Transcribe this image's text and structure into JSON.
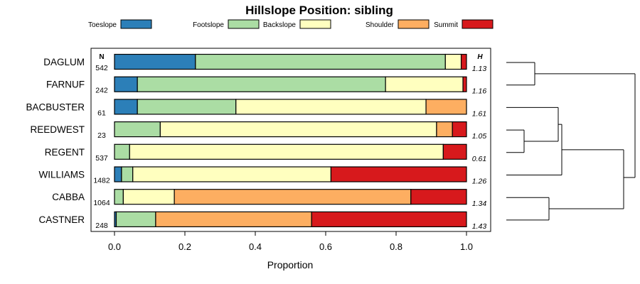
{
  "chart_data": {
    "type": "bar",
    "orientation": "horizontal",
    "stacked": true,
    "title": "Hillslope Position: sibling",
    "xlabel": "Proportion",
    "xlim": [
      0,
      1
    ],
    "xticks": [
      "0.0",
      "0.2",
      "0.4",
      "0.6",
      "0.8",
      "1.0"
    ],
    "legend_placement": "top",
    "n_header": "N",
    "h_header": "H",
    "series": [
      {
        "name": "Toeslope",
        "color": "#2c7fb8"
      },
      {
        "name": "Footslope",
        "color": "#abdda4"
      },
      {
        "name": "Backslope",
        "color": "#ffffbf"
      },
      {
        "name": "Shoulder",
        "color": "#fdae61"
      },
      {
        "name": "Summit",
        "color": "#d7191c"
      }
    ],
    "rows": [
      {
        "label": "DAGLUM",
        "n": "542",
        "h": "1.13",
        "values": [
          0.23,
          0.71,
          0.045,
          0.0,
          0.015
        ]
      },
      {
        "label": "FARNUF",
        "n": "242",
        "h": "1.16",
        "values": [
          0.065,
          0.705,
          0.22,
          0.0,
          0.01
        ]
      },
      {
        "label": "BACBUSTER",
        "n": "61",
        "h": "1.61",
        "values": [
          0.065,
          0.28,
          0.54,
          0.115,
          0.0
        ]
      },
      {
        "label": "REEDWEST",
        "n": "23",
        "h": "1.05",
        "values": [
          0.0,
          0.13,
          0.785,
          0.045,
          0.04
        ]
      },
      {
        "label": "REGENT",
        "n": "537",
        "h": "0.61",
        "values": [
          0.0,
          0.043,
          0.891,
          0.0,
          0.066
        ]
      },
      {
        "label": "WILLIAMS",
        "n": "1482",
        "h": "1.26",
        "values": [
          0.02,
          0.032,
          0.563,
          0.0,
          0.385
        ]
      },
      {
        "label": "CABBA",
        "n": "1064",
        "h": "1.34",
        "values": [
          0.0,
          0.025,
          0.145,
          0.672,
          0.158
        ]
      },
      {
        "label": "CASTNER",
        "n": "248",
        "h": "1.43",
        "values": [
          0.005,
          0.112,
          0.0,
          0.443,
          0.44
        ]
      }
    ],
    "dendrogram": {
      "type": "hierarchical clustering",
      "leaf_order": [
        "DAGLUM",
        "FARNUF",
        "BACBUSTER",
        "REEDWEST",
        "REGENT",
        "WILLIAMS",
        "CABBA",
        "CASTNER"
      ]
    }
  }
}
